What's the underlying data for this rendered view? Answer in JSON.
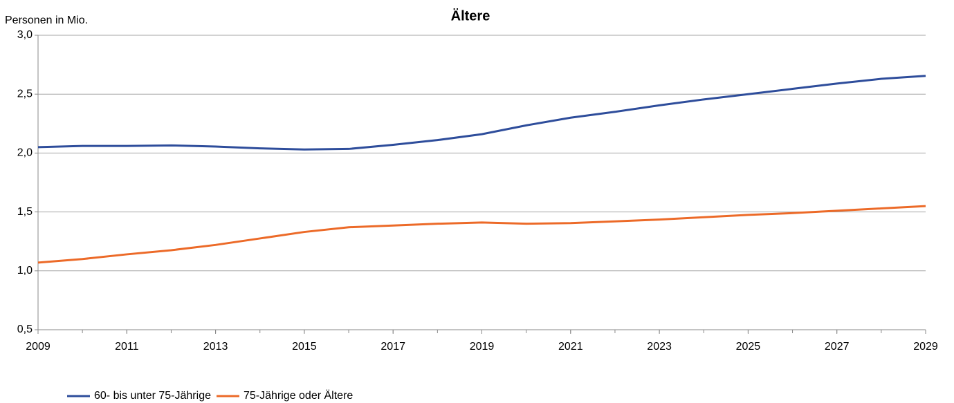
{
  "chart_data": {
    "type": "line",
    "title": "Ältere",
    "y_label": "Personen in Mio.",
    "x": [
      2009,
      2010,
      2011,
      2012,
      2013,
      2014,
      2015,
      2016,
      2017,
      2018,
      2019,
      2020,
      2021,
      2022,
      2023,
      2024,
      2025,
      2026,
      2027,
      2028,
      2029
    ],
    "series": [
      {
        "name": "60- bis unter 75-Jährige",
        "color": "#2e4d9b",
        "values": [
          2.05,
          2.06,
          2.06,
          2.065,
          2.055,
          2.04,
          2.03,
          2.035,
          2.07,
          2.11,
          2.16,
          2.235,
          2.3,
          2.35,
          2.405,
          2.455,
          2.5,
          2.545,
          2.59,
          2.63,
          2.655
        ]
      },
      {
        "name": "75-Jährige oder Ältere",
        "color": "#ec6a28",
        "values": [
          1.07,
          1.1,
          1.14,
          1.175,
          1.22,
          1.275,
          1.33,
          1.37,
          1.385,
          1.4,
          1.41,
          1.4,
          1.405,
          1.42,
          1.435,
          1.455,
          1.475,
          1.49,
          1.51,
          1.53,
          1.55
        ]
      }
    ],
    "xlim": [
      2009,
      2029
    ],
    "xticks": [
      2009,
      2011,
      2013,
      2015,
      2017,
      2019,
      2021,
      2023,
      2025,
      2027,
      2029
    ],
    "ylim": [
      0.5,
      3.0
    ],
    "yticks": [
      {
        "value": 0.5,
        "label": "0,5"
      },
      {
        "value": 1.0,
        "label": "1,0"
      },
      {
        "value": 1.5,
        "label": "1,5"
      },
      {
        "value": 2.0,
        "label": "2,0"
      },
      {
        "value": 2.5,
        "label": "2,5"
      },
      {
        "value": 3.0,
        "label": "3,0"
      }
    ],
    "grid": true,
    "legend": "bottom-left"
  }
}
